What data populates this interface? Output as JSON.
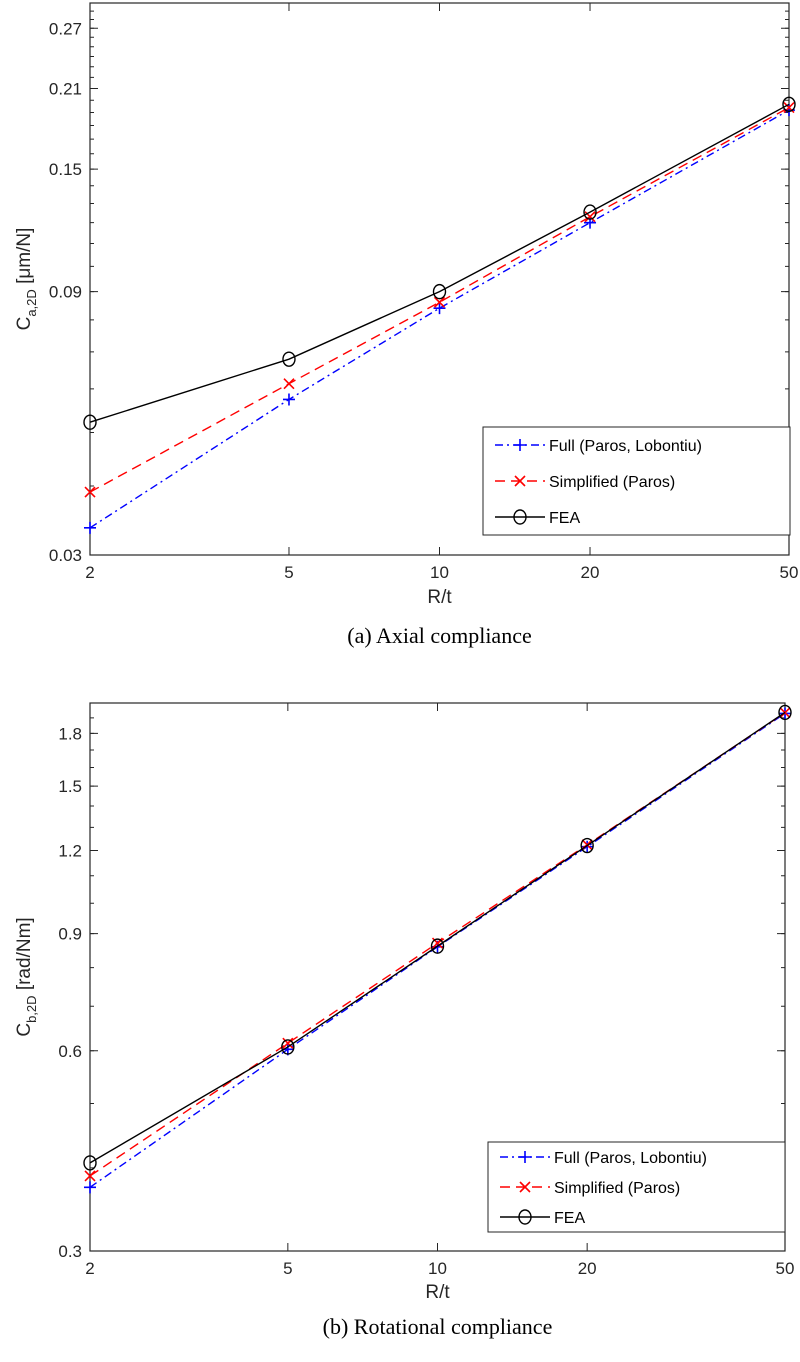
{
  "chart_data": [
    {
      "type": "line",
      "title": "",
      "caption": "(a) Axial compliance",
      "xlabel": "R/t",
      "ylabel_main": "C",
      "ylabel_sub": "a,2D",
      "ylabel_unit": " [μm/N]",
      "xscale": "log",
      "yscale": "log",
      "xlim": [
        2,
        50
      ],
      "ylim": [
        0.03,
        0.3
      ],
      "xticks": [
        2,
        5,
        10,
        20,
        50
      ],
      "xtick_labels": [
        "2",
        "5",
        "10",
        "20",
        "50"
      ],
      "yticks": [
        0.03,
        0.09,
        0.15,
        0.21,
        0.27
      ],
      "ytick_labels": [
        "0.03",
        "0.09",
        "0.15",
        "0.21",
        "0.27"
      ],
      "x": [
        2,
        5,
        10,
        20,
        50
      ],
      "legend_position": "bottom-right",
      "series": [
        {
          "name": "Full (Paros, Lobontiu)",
          "color": "#0000ff",
          "dash": "dashdot",
          "marker": "plus",
          "values": [
            0.0336,
            0.0574,
            0.084,
            0.12,
            0.1919
          ]
        },
        {
          "name": "Simplified (Paros)",
          "color": "#ff0000",
          "dash": "dashed",
          "marker": "x",
          "values": [
            0.039,
            0.0613,
            0.0861,
            0.123,
            0.194
          ]
        },
        {
          "name": "FEA",
          "color": "#000000",
          "dash": "solid",
          "marker": "circle",
          "values": [
            0.0522,
            0.0679,
            0.09,
            0.1254,
            0.1966
          ]
        }
      ]
    },
    {
      "type": "line",
      "title": "",
      "caption": "(b) Rotational compliance",
      "xlabel": "R/t",
      "ylabel_main": "C",
      "ylabel_sub": "b,2D",
      "ylabel_unit": " [rad/Nm]",
      "xscale": "log",
      "yscale": "log",
      "xlim": [
        2,
        50
      ],
      "ylim": [
        0.3,
        2.0
      ],
      "xticks": [
        2,
        5,
        10,
        20,
        50
      ],
      "xtick_labels": [
        "2",
        "5",
        "10",
        "20",
        "50"
      ],
      "yticks": [
        0.3,
        0.6,
        0.9,
        1.2,
        1.5,
        1.8
      ],
      "ytick_labels": [
        "0.3",
        "0.6",
        "0.9",
        "1.2",
        "1.5",
        "1.8"
      ],
      "x": [
        2,
        5,
        10,
        20,
        50
      ],
      "legend_position": "bottom-right",
      "series": [
        {
          "name": "Full (Paros, Lobontiu)",
          "color": "#0000ff",
          "dash": "dashdot",
          "marker": "plus",
          "values": [
            0.374,
            0.603,
            0.86,
            1.216,
            1.929
          ]
        },
        {
          "name": "Simplified (Paros)",
          "color": "#ff0000",
          "dash": "dashed",
          "marker": "x",
          "values": [
            0.389,
            0.616,
            0.871,
            1.224,
            1.934
          ]
        },
        {
          "name": "FEA",
          "color": "#000000",
          "dash": "solid",
          "marker": "circle",
          "values": [
            0.407,
            0.608,
            0.862,
            1.221,
            1.936
          ]
        }
      ]
    }
  ]
}
